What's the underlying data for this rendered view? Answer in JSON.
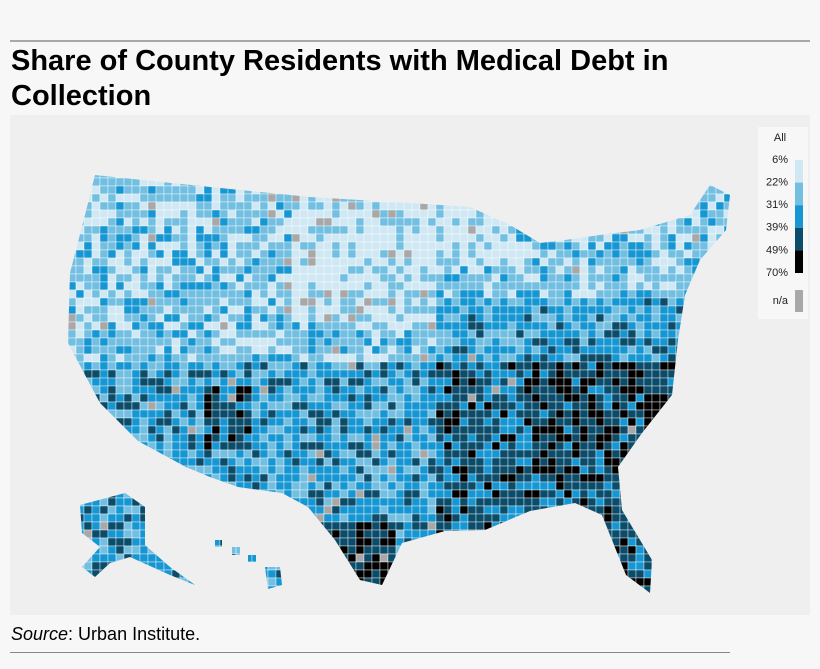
{
  "header": {
    "title": "Share of County Residents with Medical Debt in Collection"
  },
  "legend": {
    "title": "All",
    "labels": [
      "6%",
      "22%",
      "31%",
      "39%",
      "49%",
      "70%"
    ],
    "colors": [
      "#cfe8f3",
      "#73bfe2",
      "#1696d2",
      "#0a4c6a",
      "#000000"
    ],
    "na_label": "n/a",
    "na_color": "#a8a8a8"
  },
  "footer": {
    "source_label": "Source",
    "source_text": ": Urban Institute."
  }
}
